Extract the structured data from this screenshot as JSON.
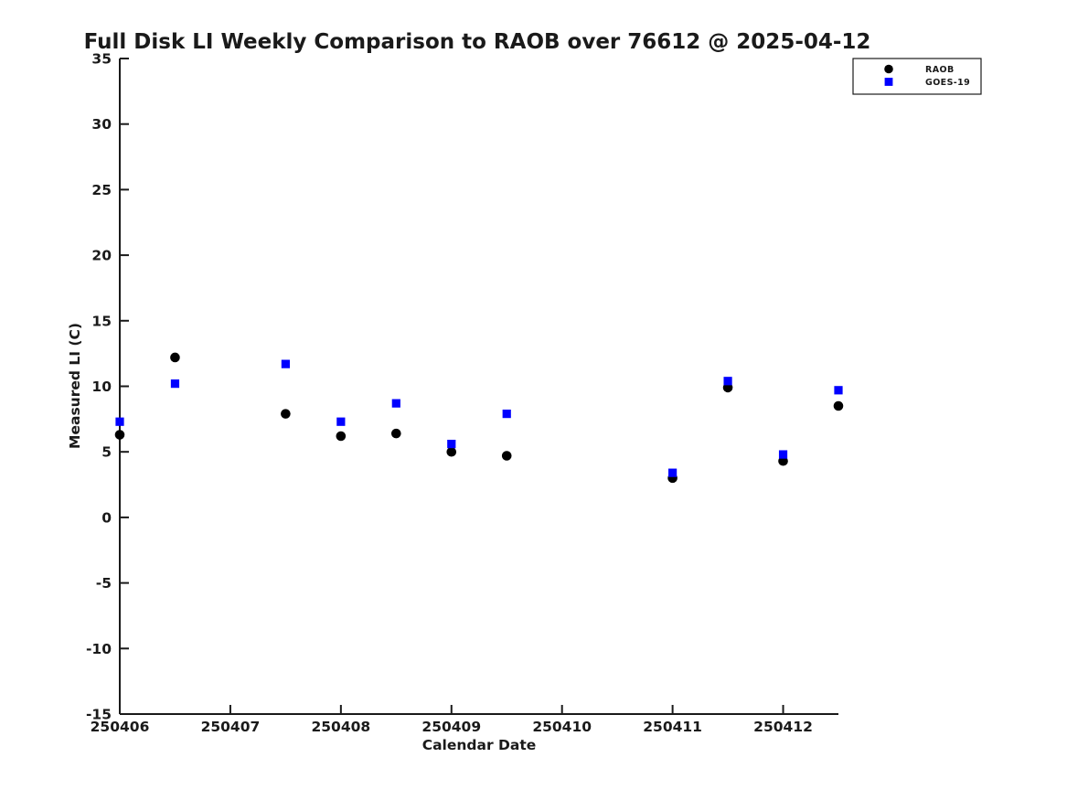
{
  "window": {
    "background_color": "#ffffff",
    "text_color": "#1a1a1a"
  },
  "chart_data": {
    "type": "scatter",
    "title": "Full Disk LI Weekly Comparison to RAOB over 76612 @ 2025-04-12",
    "xlabel": "Calendar Date",
    "ylabel": "Measured LI (C)",
    "xlim": [
      250406,
      250412.5
    ],
    "ylim": [
      -15,
      35
    ],
    "xticks": [
      250406,
      250407,
      250408,
      250409,
      250410,
      250411,
      250412
    ],
    "yticks": [
      -15,
      -10,
      -5,
      0,
      5,
      10,
      15,
      20,
      25,
      30,
      35
    ],
    "grid": false,
    "legend_position": "top-right-outside",
    "x": [
      250406.0,
      250406.5,
      250407.5,
      250408.0,
      250408.5,
      250409.0,
      250409.5,
      250411.0,
      250411.5,
      250412.0,
      250412.5
    ],
    "series": [
      {
        "name": "RAOB",
        "marker": "circle-icon",
        "color": "#000000",
        "values": [
          6.3,
          12.2,
          7.9,
          6.2,
          6.4,
          5.0,
          4.7,
          3.0,
          9.9,
          4.3,
          8.5
        ]
      },
      {
        "name": "GOES-19",
        "marker": "square-icon",
        "color": "#0000ff",
        "values": [
          7.3,
          10.2,
          11.7,
          7.3,
          8.7,
          5.6,
          7.9,
          3.4,
          10.4,
          4.8,
          9.7
        ]
      }
    ]
  }
}
